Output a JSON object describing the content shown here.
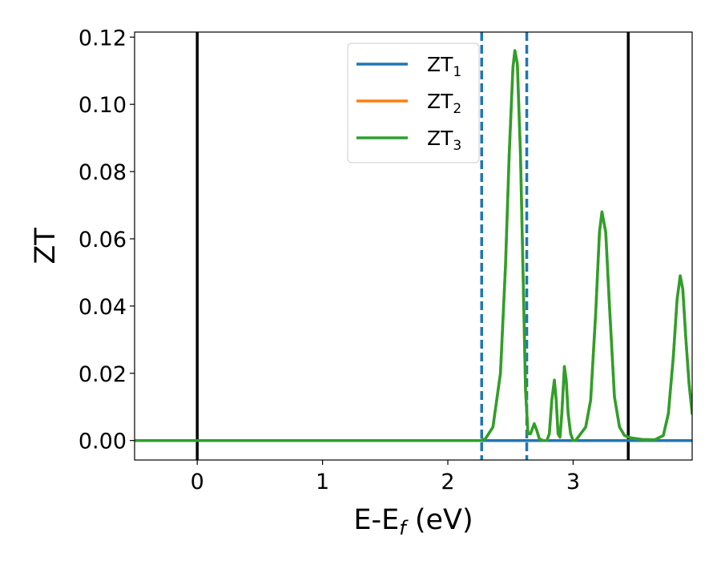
{
  "chart_data": {
    "type": "line",
    "xlabel_main": "E-E",
    "xlabel_sub": "f",
    "xlabel_unit": " (eV)",
    "ylabel": "ZT",
    "xlim": [
      -0.5,
      3.95
    ],
    "ylim": [
      -0.0058,
      0.1215
    ],
    "xticks": [
      0,
      1,
      2,
      3
    ],
    "xtick_labels": [
      "0",
      "1",
      "2",
      "3"
    ],
    "yticks": [
      0.0,
      0.02,
      0.04,
      0.06,
      0.08,
      0.1,
      0.12
    ],
    "ytick_labels": [
      "0.00",
      "0.02",
      "0.04",
      "0.06",
      "0.08",
      "0.10",
      "0.12"
    ],
    "grid": false,
    "legend_position": "top-center",
    "vlines_solid": [
      0.0,
      3.44
    ],
    "vlines_dashed": [
      2.27,
      2.63
    ],
    "series": [
      {
        "name": "ZT",
        "name_sub": "1",
        "color": "#1f77b4",
        "points": [
          [
            -0.5,
            0.0
          ],
          [
            3.95,
            0.0
          ]
        ]
      },
      {
        "name": "ZT",
        "name_sub": "2",
        "color": "#ff7f0e",
        "points": [
          [
            -0.5,
            0.0
          ],
          [
            2.26,
            0.0
          ],
          [
            2.3,
            0.0005
          ],
          [
            2.36,
            0.004
          ],
          [
            2.42,
            0.02
          ],
          [
            2.46,
            0.052
          ],
          [
            2.49,
            0.085
          ],
          [
            2.52,
            0.111
          ],
          [
            2.535,
            0.116
          ],
          [
            2.555,
            0.112
          ],
          [
            2.58,
            0.085
          ],
          [
            2.6,
            0.05
          ],
          [
            2.62,
            0.015
          ],
          [
            2.64,
            0.002
          ],
          [
            2.66,
            0.002
          ],
          [
            2.69,
            0.005
          ],
          [
            2.71,
            0.003
          ],
          [
            2.73,
            0.0005
          ],
          [
            2.76,
            0.0
          ],
          [
            2.79,
            0.0
          ],
          [
            2.81,
            0.002
          ],
          [
            2.83,
            0.012
          ],
          [
            2.85,
            0.018
          ],
          [
            2.865,
            0.012
          ],
          [
            2.88,
            0.002
          ],
          [
            2.895,
            0.001
          ],
          [
            2.91,
            0.008
          ],
          [
            2.93,
            0.022
          ],
          [
            2.945,
            0.018
          ],
          [
            2.96,
            0.008
          ],
          [
            2.98,
            0.002
          ],
          [
            3.0,
            0.0
          ],
          [
            3.02,
            0.0
          ],
          [
            3.06,
            0.002
          ],
          [
            3.1,
            0.004
          ],
          [
            3.14,
            0.012
          ],
          [
            3.18,
            0.038
          ],
          [
            3.21,
            0.062
          ],
          [
            3.23,
            0.068
          ],
          [
            3.26,
            0.062
          ],
          [
            3.29,
            0.04
          ],
          [
            3.33,
            0.013
          ],
          [
            3.37,
            0.004
          ],
          [
            3.41,
            0.0015
          ],
          [
            3.46,
            0.0008
          ],
          [
            3.55,
            0.0003
          ],
          [
            3.65,
            0.0002
          ],
          [
            3.72,
            0.0015
          ],
          [
            3.76,
            0.008
          ],
          [
            3.8,
            0.025
          ],
          [
            3.83,
            0.042
          ],
          [
            3.855,
            0.049
          ],
          [
            3.875,
            0.045
          ],
          [
            3.9,
            0.03
          ],
          [
            3.925,
            0.017
          ],
          [
            3.95,
            0.008
          ]
        ]
      },
      {
        "name": "ZT",
        "name_sub": "3",
        "color": "#2ca02c",
        "points": [
          [
            -0.5,
            0.0
          ],
          [
            2.26,
            0.0
          ],
          [
            2.3,
            0.0005
          ],
          [
            2.36,
            0.004
          ],
          [
            2.42,
            0.02
          ],
          [
            2.46,
            0.052
          ],
          [
            2.49,
            0.085
          ],
          [
            2.52,
            0.111
          ],
          [
            2.535,
            0.116
          ],
          [
            2.555,
            0.112
          ],
          [
            2.58,
            0.085
          ],
          [
            2.6,
            0.05
          ],
          [
            2.62,
            0.015
          ],
          [
            2.64,
            0.002
          ],
          [
            2.66,
            0.002
          ],
          [
            2.69,
            0.005
          ],
          [
            2.71,
            0.003
          ],
          [
            2.73,
            0.0005
          ],
          [
            2.76,
            0.0
          ],
          [
            2.79,
            0.0
          ],
          [
            2.81,
            0.002
          ],
          [
            2.83,
            0.012
          ],
          [
            2.85,
            0.018
          ],
          [
            2.865,
            0.012
          ],
          [
            2.88,
            0.002
          ],
          [
            2.895,
            0.001
          ],
          [
            2.91,
            0.008
          ],
          [
            2.93,
            0.022
          ],
          [
            2.945,
            0.018
          ],
          [
            2.96,
            0.008
          ],
          [
            2.98,
            0.002
          ],
          [
            3.0,
            0.0
          ],
          [
            3.02,
            0.0
          ],
          [
            3.06,
            0.002
          ],
          [
            3.1,
            0.004
          ],
          [
            3.14,
            0.012
          ],
          [
            3.18,
            0.038
          ],
          [
            3.21,
            0.062
          ],
          [
            3.23,
            0.068
          ],
          [
            3.26,
            0.062
          ],
          [
            3.29,
            0.04
          ],
          [
            3.33,
            0.013
          ],
          [
            3.37,
            0.004
          ],
          [
            3.41,
            0.0015
          ],
          [
            3.46,
            0.0008
          ],
          [
            3.55,
            0.0003
          ],
          [
            3.65,
            0.0002
          ],
          [
            3.72,
            0.0015
          ],
          [
            3.76,
            0.008
          ],
          [
            3.8,
            0.025
          ],
          [
            3.83,
            0.042
          ],
          [
            3.855,
            0.049
          ],
          [
            3.875,
            0.045
          ],
          [
            3.9,
            0.03
          ],
          [
            3.925,
            0.017
          ],
          [
            3.95,
            0.008
          ]
        ]
      }
    ]
  }
}
